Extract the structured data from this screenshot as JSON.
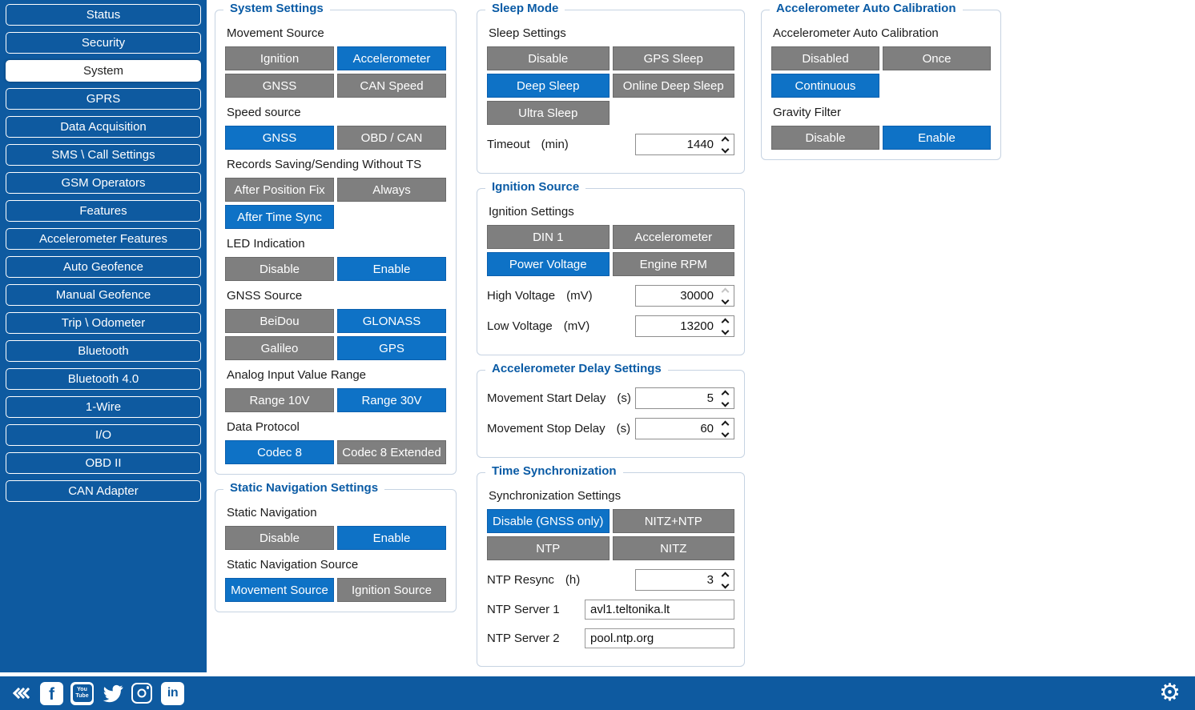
{
  "colors": {
    "accent": "#0E72C6",
    "accent_border": "#0A5FAE",
    "sidebar": "#0E5AA0",
    "group_title": "#0A5BA5",
    "gray_button": "#7F7F7F",
    "gray_border": "#6A6A6A",
    "group_border": "#C6D3E2",
    "text": "#1B1B1B"
  },
  "sidebar": {
    "items": [
      {
        "label": "Status",
        "active": false
      },
      {
        "label": "Security",
        "active": false
      },
      {
        "label": "System",
        "active": true
      },
      {
        "label": "GPRS",
        "active": false
      },
      {
        "label": "Data Acquisition",
        "active": false
      },
      {
        "label": "SMS \\ Call Settings",
        "active": false
      },
      {
        "label": "GSM Operators",
        "active": false
      },
      {
        "label": "Features",
        "active": false
      },
      {
        "label": "Accelerometer Features",
        "active": false
      },
      {
        "label": "Auto Geofence",
        "active": false
      },
      {
        "label": "Manual Geofence",
        "active": false
      },
      {
        "label": "Trip \\ Odometer",
        "active": false
      },
      {
        "label": "Bluetooth",
        "active": false
      },
      {
        "label": "Bluetooth 4.0",
        "active": false
      },
      {
        "label": "1-Wire",
        "active": false
      },
      {
        "label": "I/O",
        "active": false
      },
      {
        "label": "OBD II",
        "active": false
      },
      {
        "label": "CAN Adapter",
        "active": false
      }
    ]
  },
  "groups": [
    {
      "title": "System Settings",
      "column": 1,
      "controls": [
        {
          "type": "segmented",
          "label": "Movement Source",
          "options": [
            {
              "text": "Ignition",
              "selected": false
            },
            {
              "text": "Accelerometer",
              "selected": true
            },
            {
              "text": "GNSS",
              "selected": false
            },
            {
              "text": "CAN Speed",
              "selected": false
            }
          ]
        },
        {
          "type": "segmented",
          "label": "Speed source",
          "options": [
            {
              "text": "GNSS",
              "selected": true
            },
            {
              "text": "OBD / CAN",
              "selected": false
            }
          ]
        },
        {
          "type": "segmented",
          "label": "Records Saving/Sending Without TS",
          "options": [
            {
              "text": "After Position Fix",
              "selected": false
            },
            {
              "text": "Always",
              "selected": false
            },
            {
              "text": "After Time Sync",
              "selected": true
            }
          ]
        },
        {
          "type": "segmented",
          "label": "LED Indication",
          "options": [
            {
              "text": "Disable",
              "selected": false
            },
            {
              "text": "Enable",
              "selected": true
            }
          ]
        },
        {
          "type": "segmented",
          "label": "GNSS Source",
          "options": [
            {
              "text": "BeiDou",
              "selected": false
            },
            {
              "text": "GLONASS",
              "selected": true
            },
            {
              "text": "Galileo",
              "selected": false
            },
            {
              "text": "GPS",
              "selected": true
            }
          ]
        },
        {
          "type": "segmented",
          "label": "Analog Input Value Range",
          "options": [
            {
              "text": "Range 10V",
              "selected": false
            },
            {
              "text": "Range 30V",
              "selected": true
            }
          ]
        },
        {
          "type": "segmented",
          "label": "Data Protocol",
          "options": [
            {
              "text": "Codec 8",
              "selected": true
            },
            {
              "text": "Codec 8 Extended",
              "selected": false
            }
          ]
        }
      ]
    },
    {
      "title": "Static Navigation Settings",
      "column": 1,
      "controls": [
        {
          "type": "segmented",
          "label": "Static Navigation",
          "options": [
            {
              "text": "Disable",
              "selected": false
            },
            {
              "text": "Enable",
              "selected": true
            }
          ]
        },
        {
          "type": "segmented",
          "label": "Static Navigation Source",
          "options": [
            {
              "text": "Movement Source",
              "selected": true
            },
            {
              "text": "Ignition Source",
              "selected": false
            }
          ]
        }
      ]
    },
    {
      "title": "Sleep Mode",
      "column": 2,
      "controls": [
        {
          "type": "segmented",
          "label": "Sleep Settings",
          "options": [
            {
              "text": "Disable",
              "selected": false
            },
            {
              "text": "GPS Sleep",
              "selected": false
            },
            {
              "text": "Deep Sleep",
              "selected": true
            },
            {
              "text": "Online Deep Sleep",
              "selected": false
            },
            {
              "text": "Ultra Sleep",
              "selected": false
            }
          ]
        },
        {
          "type": "spinner",
          "label": "Timeout",
          "unit": "(min)",
          "value": "1440",
          "up_disabled": false
        }
      ]
    },
    {
      "title": "Ignition Source",
      "column": 2,
      "controls": [
        {
          "type": "segmented",
          "label": "Ignition Settings",
          "options": [
            {
              "text": "DIN 1",
              "selected": false
            },
            {
              "text": "Accelerometer",
              "selected": false
            },
            {
              "text": "Power Voltage",
              "selected": true
            },
            {
              "text": "Engine RPM",
              "selected": false
            }
          ]
        },
        {
          "type": "spinner",
          "label": "High Voltage",
          "unit": "(mV)",
          "value": "30000",
          "up_disabled": true
        },
        {
          "type": "spinner",
          "label": "Low Voltage",
          "unit": "(mV)",
          "value": "13200",
          "up_disabled": false
        }
      ]
    },
    {
      "title": "Accelerometer Delay Settings",
      "column": 2,
      "controls": [
        {
          "type": "spinner",
          "label": "Movement Start Delay",
          "unit": "(s)",
          "value": "5",
          "up_disabled": false
        },
        {
          "type": "spinner",
          "label": "Movement Stop Delay",
          "unit": "(s)",
          "value": "60",
          "up_disabled": false
        }
      ]
    },
    {
      "title": "Time Synchronization",
      "column": 2,
      "controls": [
        {
          "type": "segmented",
          "label": "Synchronization Settings",
          "options": [
            {
              "text": "Disable (GNSS only)",
              "selected": true
            },
            {
              "text": "NITZ+NTP",
              "selected": false
            },
            {
              "text": "NTP",
              "selected": false
            },
            {
              "text": "NITZ",
              "selected": false
            }
          ]
        },
        {
          "type": "spinner",
          "label": "NTP Resync",
          "unit": "(h)",
          "value": "3",
          "up_disabled": false
        },
        {
          "type": "text",
          "label": "NTP Server 1",
          "value": "avl1.teltonika.lt"
        },
        {
          "type": "text",
          "label": "NTP Server 2",
          "value": "pool.ntp.org"
        }
      ]
    },
    {
      "title": "Accelerometer Auto Calibration",
      "column": 3,
      "controls": [
        {
          "type": "segmented",
          "label": "Accelerometer Auto Calibration",
          "options": [
            {
              "text": "Disabled",
              "selected": false
            },
            {
              "text": "Once",
              "selected": false
            },
            {
              "text": "Continuous",
              "selected": true
            }
          ]
        },
        {
          "type": "segmented",
          "label": "Gravity Filter",
          "options": [
            {
              "text": "Disable",
              "selected": false
            },
            {
              "text": "Enable",
              "selected": true
            }
          ]
        }
      ]
    }
  ],
  "footer": {
    "facebook_letter": "f",
    "youtube_top": "You",
    "youtube_bottom": "Tube",
    "linkedin_letters": "in",
    "gear_glyph": "⚙"
  }
}
